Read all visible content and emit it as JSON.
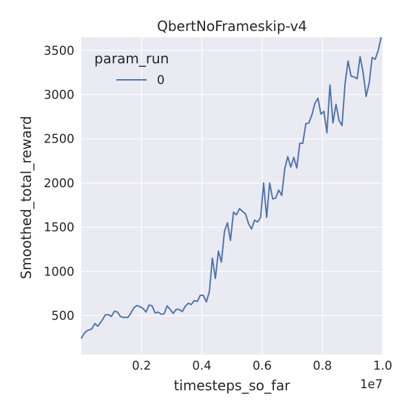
{
  "chart_data": {
    "type": "line",
    "title": "QbertNoFrameskip-v4",
    "xlabel": "timesteps_so_far",
    "ylabel": "Smoothed_total_reward",
    "x_offset_label": "1e7",
    "x_tick_labels": [
      "0.2",
      "0.4",
      "0.6",
      "0.8",
      "1.0"
    ],
    "x_tick_values": [
      2000000,
      4000000,
      6000000,
      8000000,
      10000000
    ],
    "y_tick_labels": [
      "500",
      "1000",
      "1500",
      "2000",
      "2500",
      "3000",
      "3500"
    ],
    "y_tick_values": [
      500,
      1000,
      1500,
      2000,
      2500,
      3000,
      3500
    ],
    "xlim": [
      0,
      10000000
    ],
    "ylim": [
      60,
      3650
    ],
    "grid": true,
    "legend": {
      "title": "param_run",
      "placement": "top-left",
      "entries": [
        "0"
      ]
    },
    "series": [
      {
        "name": "0",
        "color": "#4c72b0",
        "points": [
          [
            0,
            240
          ],
          [
            100000,
            300
          ],
          [
            200000,
            330
          ],
          [
            350000,
            350
          ],
          [
            450000,
            410
          ],
          [
            550000,
            380
          ],
          [
            700000,
            450
          ],
          [
            800000,
            510
          ],
          [
            900000,
            510
          ],
          [
            1000000,
            490
          ],
          [
            1100000,
            550
          ],
          [
            1200000,
            540
          ],
          [
            1300000,
            490
          ],
          [
            1400000,
            480
          ],
          [
            1550000,
            480
          ],
          [
            1650000,
            530
          ],
          [
            1750000,
            590
          ],
          [
            1850000,
            615
          ],
          [
            1950000,
            600
          ],
          [
            2050000,
            580
          ],
          [
            2150000,
            540
          ],
          [
            2250000,
            620
          ],
          [
            2350000,
            610
          ],
          [
            2450000,
            530
          ],
          [
            2550000,
            540
          ],
          [
            2650000,
            515
          ],
          [
            2750000,
            520
          ],
          [
            2850000,
            610
          ],
          [
            2950000,
            570
          ],
          [
            3050000,
            525
          ],
          [
            3150000,
            570
          ],
          [
            3250000,
            570
          ],
          [
            3350000,
            545
          ],
          [
            3450000,
            605
          ],
          [
            3550000,
            640
          ],
          [
            3650000,
            625
          ],
          [
            3750000,
            670
          ],
          [
            3850000,
            660
          ],
          [
            3950000,
            730
          ],
          [
            4050000,
            730
          ],
          [
            4150000,
            655
          ],
          [
            4250000,
            770
          ],
          [
            4350000,
            1150
          ],
          [
            4450000,
            920
          ],
          [
            4550000,
            1230
          ],
          [
            4650000,
            1105
          ],
          [
            4750000,
            1450
          ],
          [
            4850000,
            1550
          ],
          [
            4950000,
            1350
          ],
          [
            5050000,
            1670
          ],
          [
            5150000,
            1640
          ],
          [
            5250000,
            1710
          ],
          [
            5350000,
            1680
          ],
          [
            5450000,
            1650
          ],
          [
            5550000,
            1540
          ],
          [
            5650000,
            1480
          ],
          [
            5750000,
            1580
          ],
          [
            5850000,
            1560
          ],
          [
            5950000,
            1610
          ],
          [
            6050000,
            2000
          ],
          [
            6150000,
            1610
          ],
          [
            6250000,
            2000
          ],
          [
            6350000,
            1820
          ],
          [
            6450000,
            1830
          ],
          [
            6550000,
            1920
          ],
          [
            6650000,
            1860
          ],
          [
            6750000,
            2160
          ],
          [
            6850000,
            2300
          ],
          [
            6950000,
            2180
          ],
          [
            7050000,
            2290
          ],
          [
            7150000,
            2170
          ],
          [
            7250000,
            2450
          ],
          [
            7350000,
            2450
          ],
          [
            7450000,
            2670
          ],
          [
            7550000,
            2680
          ],
          [
            7650000,
            2770
          ],
          [
            7750000,
            2900
          ],
          [
            7850000,
            2960
          ],
          [
            7950000,
            2780
          ],
          [
            8050000,
            2810
          ],
          [
            8150000,
            2570
          ],
          [
            8250000,
            3110
          ],
          [
            8350000,
            2680
          ],
          [
            8450000,
            2890
          ],
          [
            8550000,
            2710
          ],
          [
            8650000,
            2650
          ],
          [
            8750000,
            3120
          ],
          [
            8850000,
            3380
          ],
          [
            8950000,
            3210
          ],
          [
            9050000,
            3200
          ],
          [
            9150000,
            3180
          ],
          [
            9250000,
            3430
          ],
          [
            9350000,
            3250
          ],
          [
            9450000,
            2980
          ],
          [
            9550000,
            3130
          ],
          [
            9650000,
            3420
          ],
          [
            9750000,
            3400
          ],
          [
            9850000,
            3500
          ],
          [
            9950000,
            3650
          ]
        ]
      }
    ]
  }
}
